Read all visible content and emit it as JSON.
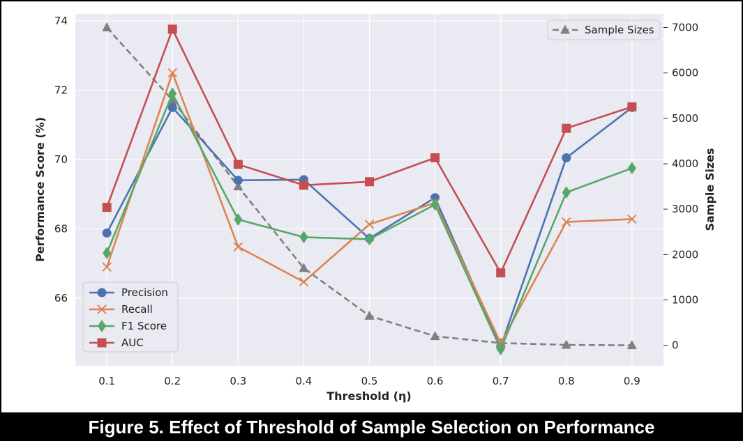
{
  "caption": "Figure 5. Effect of Threshold of Sample Selection on Performance",
  "chart_data": {
    "type": "line",
    "xlabel": "Threshold (η)",
    "ylabel": "Performance Score (%)",
    "y2label": "Sample Sizes",
    "x": [
      0.1,
      0.2,
      0.3,
      0.4,
      0.5,
      0.6,
      0.7,
      0.8,
      0.9
    ],
    "x_tick_labels": [
      "0.1",
      "0.2",
      "0.3",
      "0.4",
      "0.5",
      "0.6",
      "0.7",
      "0.8",
      "0.9"
    ],
    "ylim": [
      64.05,
      74.2
    ],
    "y_ticks": [
      66,
      68,
      70,
      72,
      74
    ],
    "y2lim": [
      -450,
      7300
    ],
    "y2_ticks": [
      0,
      1000,
      2000,
      3000,
      4000,
      5000,
      6000,
      7000
    ],
    "grid": true,
    "legend_left": "bottom-left",
    "legend_right": "top-right",
    "series": [
      {
        "name": "Precision",
        "axis": "left",
        "marker": "circle",
        "color": "#4c72b0",
        "values": [
          67.88,
          71.5,
          69.4,
          69.42,
          67.72,
          68.9,
          64.6,
          70.05,
          71.5
        ]
      },
      {
        "name": "Recall",
        "axis": "left",
        "marker": "x",
        "color": "#dd8452",
        "values": [
          66.9,
          72.5,
          67.48,
          66.47,
          68.13,
          68.75,
          64.7,
          68.2,
          68.28
        ]
      },
      {
        "name": "F1 Score",
        "axis": "left",
        "marker": "diamond",
        "color": "#55a868",
        "values": [
          67.3,
          71.9,
          68.27,
          67.76,
          67.7,
          68.7,
          64.53,
          69.05,
          69.75
        ]
      },
      {
        "name": "AUC",
        "axis": "left",
        "marker": "square",
        "color": "#c44e52",
        "values": [
          68.62,
          73.76,
          69.86,
          69.26,
          69.36,
          70.05,
          66.73,
          70.9,
          71.52
        ]
      },
      {
        "name": "Sample Sizes",
        "axis": "right",
        "marker": "triangle",
        "color": "#808080",
        "dashed": true,
        "values": [
          7000,
          5400,
          3500,
          1700,
          650,
          200,
          50,
          10,
          0
        ]
      }
    ]
  }
}
